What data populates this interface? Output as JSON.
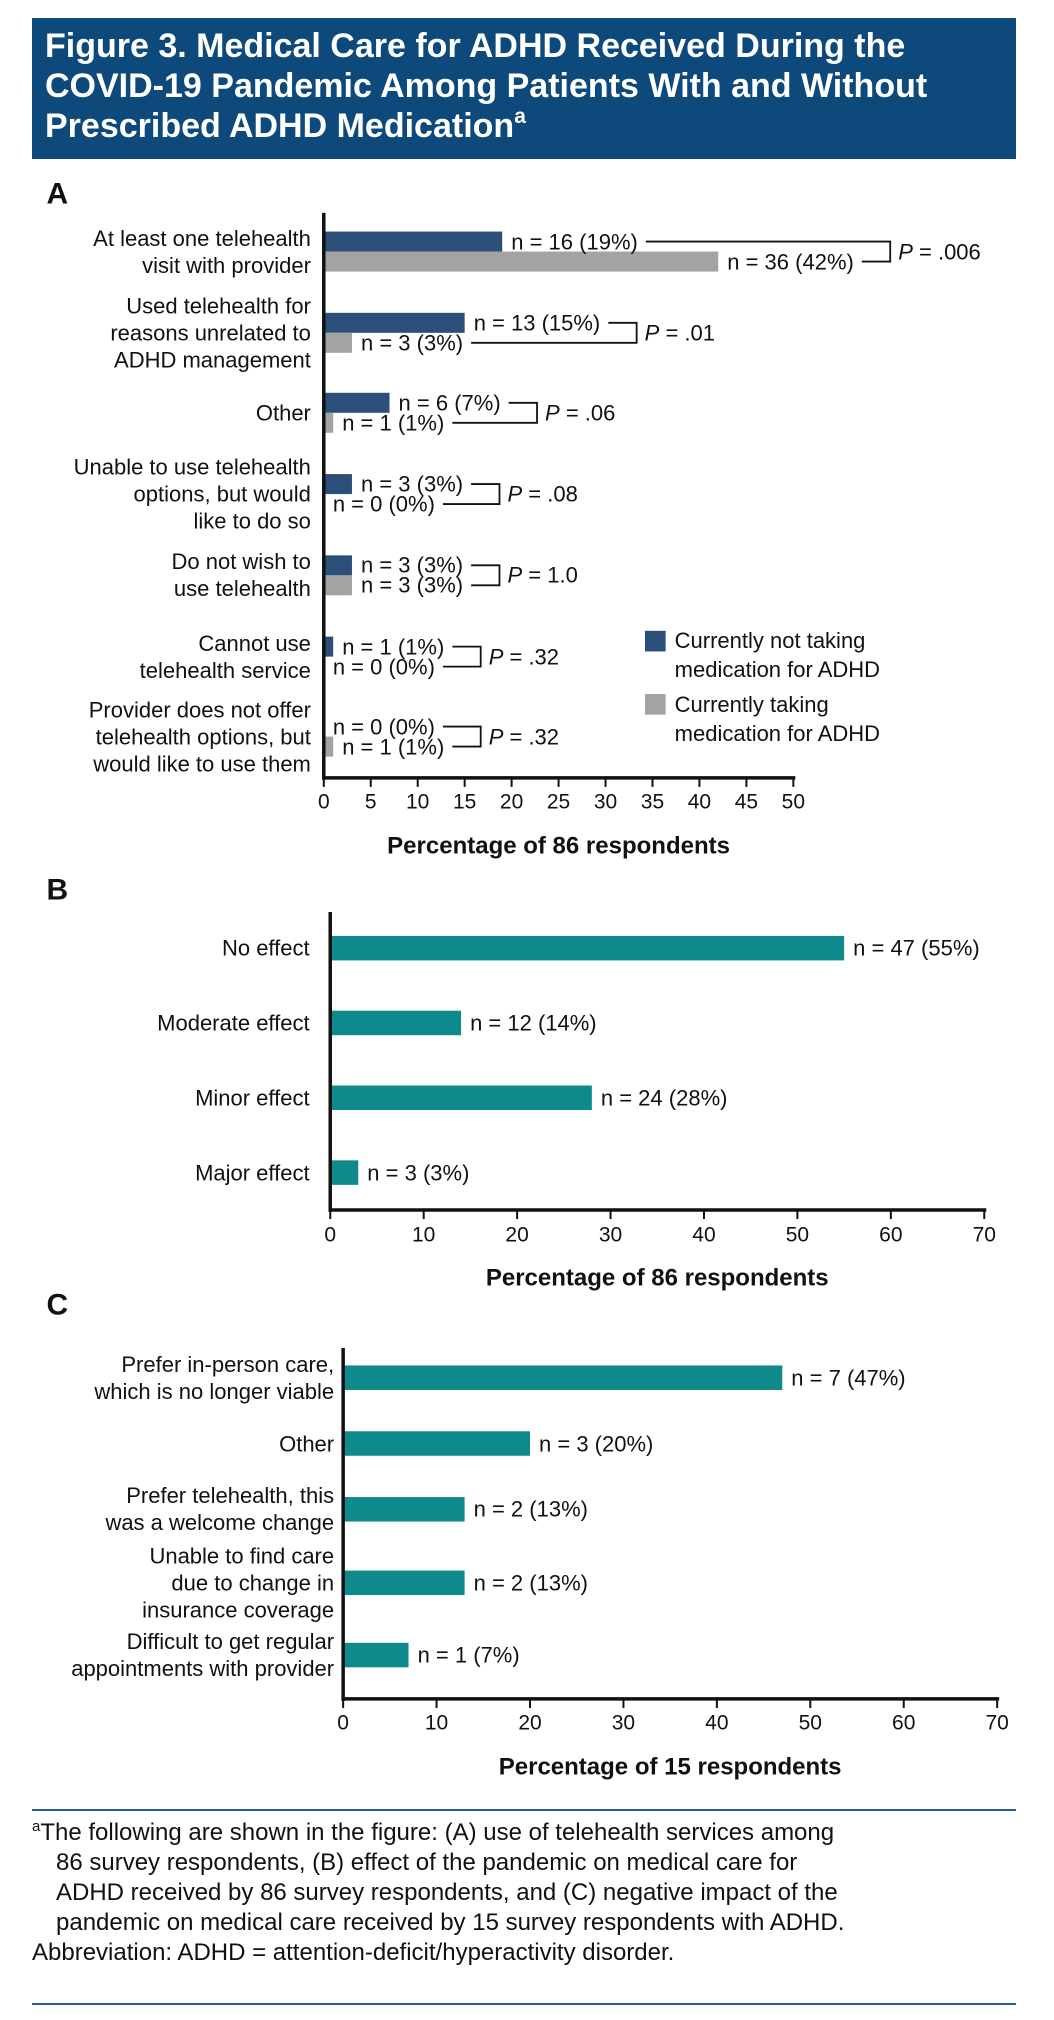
{
  "header": {
    "title": "Figure 3. Medical Care for ADHD Received During the\nCOVID-19 Pandemic Among Patients With and Without\nPrescribed ADHD Medication",
    "title_mark": "a"
  },
  "chart_data": [
    {
      "type": "bar",
      "orientation": "horizontal",
      "panel": "A",
      "categories": [
        "At least one telehealth\nvisit with provider",
        "Used telehealth for\nreasons unrelated to\nADHD management",
        "Other",
        "Unable to use telehealth\noptions, but would\nlike to do so",
        "Do not wish to\nuse telehealth",
        "Cannot use\ntelehealth service",
        "Provider does not offer\ntelehealth options, but\nwould like to use them"
      ],
      "series": [
        {
          "name": "Currently not taking\nmedication for ADHD",
          "color": "#2b4f78",
          "values": [
            19,
            15,
            7,
            3,
            3,
            1,
            0
          ],
          "value_labels": [
            "n = 16 (19%)",
            "n = 13 (15%)",
            "n = 6 (7%)",
            "n = 3 (3%)",
            "n = 3 (3%)",
            "n = 1 (1%)",
            "n = 0 (0%)"
          ]
        },
        {
          "name": "Currently taking\nmedication for ADHD",
          "color": "#a3a3a3",
          "values": [
            42,
            3,
            1,
            0,
            3,
            0,
            1
          ],
          "value_labels": [
            "n = 36 (42%)",
            "n = 3 (3%)",
            "n = 1 (1%)",
            "n = 0 (0%)",
            "n = 3 (3%)",
            "n = 0 (0%)",
            "n = 1 (1%)"
          ]
        }
      ],
      "annotations": [
        "P = .006",
        "P = .01",
        "P = .06",
        "P = .08",
        "P = 1.0",
        "P = .32",
        "P = .32"
      ],
      "xlabel": "Percentage of 86 respondents",
      "xlim": [
        0,
        50
      ],
      "xticks": [
        0,
        5,
        10,
        15,
        20,
        25,
        30,
        35,
        40,
        45,
        50
      ],
      "legend": "lower right"
    },
    {
      "type": "bar",
      "orientation": "horizontal",
      "panel": "B",
      "categories": [
        "No effect",
        "Moderate effect",
        "Minor effect",
        "Major effect"
      ],
      "values": [
        55,
        14,
        28,
        3
      ],
      "color": "#0f8a8c",
      "value_labels": [
        "n = 47 (55%)",
        "n = 12 (14%)",
        "n = 24 (28%)",
        "n = 3 (3%)"
      ],
      "xlabel": "Percentage of 86 respondents",
      "xlim": [
        0,
        70
      ],
      "xticks": [
        0,
        10,
        20,
        30,
        40,
        50,
        60,
        70
      ]
    },
    {
      "type": "bar",
      "orientation": "horizontal",
      "panel": "C",
      "categories": [
        "Prefer in-person care,\nwhich is no longer viable",
        "Other",
        "Prefer telehealth, this\nwas a welcome change",
        "Unable to find care\ndue to change in\ninsurance coverage",
        "Difficult to get regular\nappointments with provider"
      ],
      "values": [
        47,
        20,
        13,
        13,
        7
      ],
      "color": "#0f8a8c",
      "value_labels": [
        "n = 7 (47%)",
        "n = 3 (20%)",
        "n = 2 (13%)",
        "n = 2 (13%)",
        "n = 1 (7%)"
      ],
      "xlabel": "Percentage of 15 respondents",
      "xlim": [
        0,
        70
      ],
      "xticks": [
        0,
        10,
        20,
        30,
        40,
        50,
        60,
        70
      ]
    }
  ],
  "footnote": {
    "mark": "a",
    "text": "The following are shown in the figure: (A) use of telehealth services among\n86 survey respondents, (B) effect of the pandemic on medical care for\nADHD received by 86 survey respondents, and (C) negative impact of the\npandemic on medical care received by 15 survey respondents with ADHD.",
    "abbreviation": "Abbreviation: ADHD = attention-deficit/hyperactivity disorder."
  }
}
